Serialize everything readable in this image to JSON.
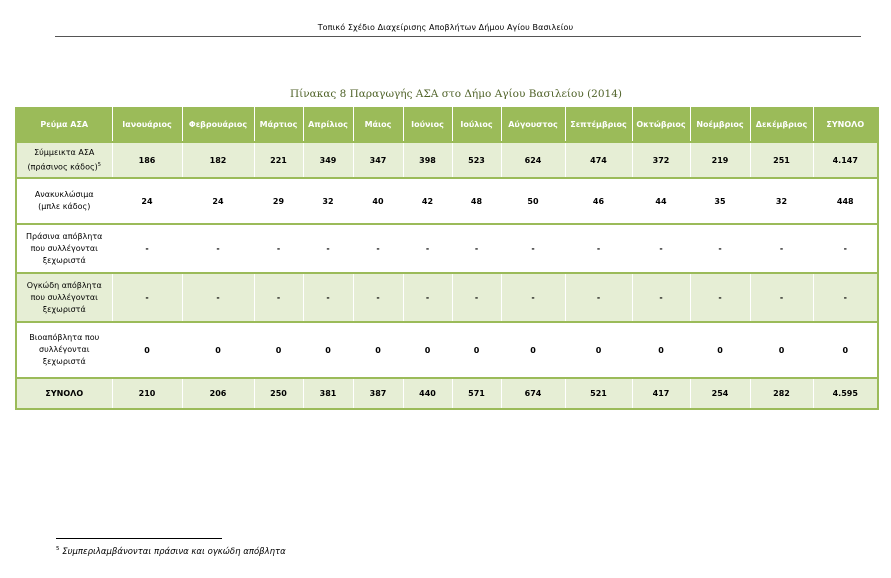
{
  "header": {
    "title": "Τοπικό Σχέδιο Διαχείρισης Αποβλήτων Δήμου Αγίου Βασιλείου"
  },
  "caption": "Πίνακας 8 Παραγωγής ΑΣΑ στο Δήμο Αγίου Βασιλείου (2014)",
  "table": {
    "columns": [
      "Ρεύμα ΑΣΑ",
      "Ιανουάριος",
      "Φεβρουάριος",
      "Μάρτιος",
      "Απρίλιος",
      "Μάιος",
      "Ιούνιος",
      "Ιούλιος",
      "Αύγουστος",
      "Σεπτέμβριος",
      "Οκτώβριος",
      "Νοέμβριος",
      "Δεκέμβριος",
      "ΣΥΝΟΛΟ"
    ],
    "rows": [
      {
        "label_lines": [
          "Σύμμεικτα ΑΣΑ",
          "(πράσινος κάδος)"
        ],
        "footnote_ref": "5",
        "values": [
          "186",
          "182",
          "221",
          "349",
          "347",
          "398",
          "523",
          "624",
          "474",
          "372",
          "219",
          "251",
          "4.147"
        ]
      },
      {
        "label_lines": [
          "Ανακυκλώσιμα",
          "(μπλε κάδος)"
        ],
        "footnote_ref": "",
        "values": [
          "24",
          "24",
          "29",
          "32",
          "40",
          "42",
          "48",
          "50",
          "46",
          "44",
          "35",
          "32",
          "448"
        ]
      },
      {
        "label_lines": [
          "Πράσινα απόβλητα",
          "που συλλέγονται",
          "ξεχωριστά"
        ],
        "footnote_ref": "",
        "values": [
          "-",
          "-",
          "-",
          "-",
          "-",
          "-",
          "-",
          "-",
          "-",
          "-",
          "-",
          "-",
          "-"
        ]
      },
      {
        "label_lines": [
          "Ογκώδη απόβλητα",
          "που συλλέγονται",
          "ξεχωριστά"
        ],
        "footnote_ref": "",
        "values": [
          "-",
          "-",
          "-",
          "-",
          "-",
          "-",
          "-",
          "-",
          "-",
          "-",
          "-",
          "-",
          "-"
        ]
      },
      {
        "label_lines": [
          "Βιοαπόβλητα που",
          "συλλέγονται",
          "ξεχωριστά"
        ],
        "footnote_ref": "",
        "values": [
          "0",
          "0",
          "0",
          "0",
          "0",
          "0",
          "0",
          "0",
          "0",
          "0",
          "0",
          "0",
          "0"
        ]
      },
      {
        "label_lines": [
          "ΣΥΝΟΛΟ"
        ],
        "footnote_ref": "",
        "values": [
          "210",
          "206",
          "250",
          "381",
          "387",
          "440",
          "571",
          "674",
          "521",
          "417",
          "254",
          "282",
          "4.595"
        ]
      }
    ]
  },
  "footnote": {
    "number": "5",
    "text": "Συμπεριλαμβάνονται πράσινα και ογκώδη απόβλητα"
  },
  "colors": {
    "header_bg": "#9bbb59",
    "row_shade": "#e6eed5",
    "caption": "#4f6228"
  }
}
